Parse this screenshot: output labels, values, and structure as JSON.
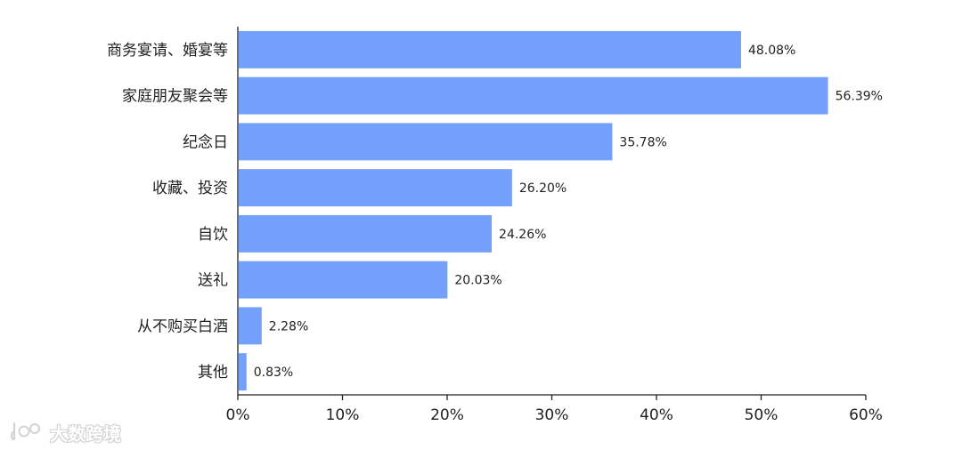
{
  "chart_data": {
    "type": "bar",
    "orientation": "horizontal",
    "categories": [
      "商务宴请、婚宴等",
      "家庭朋友聚会等",
      "纪念日",
      "收藏、投资",
      "自饮",
      "送礼",
      "从不购买白酒",
      "其他"
    ],
    "values": [
      48.08,
      56.39,
      35.78,
      26.2,
      24.26,
      20.03,
      2.28,
      0.83
    ],
    "data_labels": [
      "48.08%",
      "56.39%",
      "35.78%",
      "26.20%",
      "24.26%",
      "20.03%",
      "2.28%",
      "0.83%"
    ],
    "x_ticks": [
      "0%",
      "10%",
      "20%",
      "30%",
      "40%",
      "50%",
      "60%"
    ],
    "xlim": [
      0,
      60
    ],
    "grid": false,
    "bar_color": "#73a0fa"
  },
  "watermark": {
    "text": "大数跨境"
  }
}
